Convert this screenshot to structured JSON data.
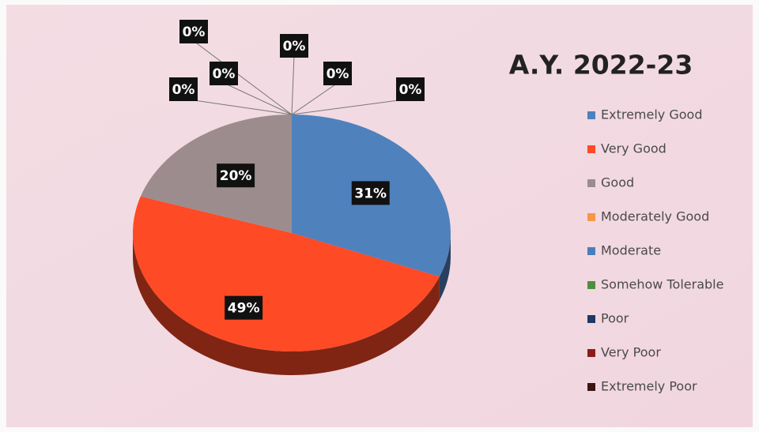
{
  "chart_data": {
    "type": "pie",
    "title": "A.Y. 2022-23",
    "categories": [
      "Extremely Good",
      "Very Good",
      "Good",
      "Moderately Good",
      "Moderate",
      "Somehow Tolerable",
      "Poor",
      "Very Poor",
      "Extremely Poor"
    ],
    "values": [
      31,
      49,
      20,
      0,
      0,
      0,
      0,
      0,
      0
    ],
    "value_labels": [
      "31%",
      "49%",
      "20%",
      "0%",
      "0%",
      "0%",
      "0%",
      "0%",
      "0%"
    ],
    "colors": [
      "#4f81bd",
      "#ff4a26",
      "#9c8c8e",
      "#f79646",
      "#4a7ebb",
      "#4e8f3c",
      "#1f3864",
      "#8b1c1c",
      "#3a1616"
    ],
    "legend": "right"
  }
}
